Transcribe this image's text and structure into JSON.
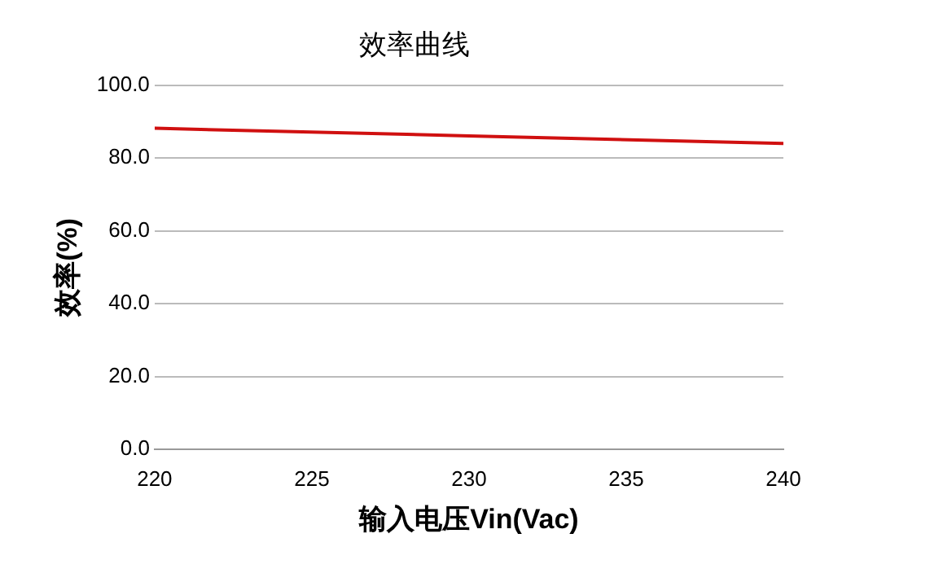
{
  "chart_data": {
    "type": "line",
    "title": "效率曲线",
    "xlabel": "输入电压Vin(Vac)",
    "ylabel": "效率(%)",
    "x": [
      220,
      230,
      240
    ],
    "series": [
      {
        "color": "#d01010",
        "values": [
          88.2,
          86.1,
          84.0
        ]
      }
    ],
    "xlim": [
      220,
      240
    ],
    "xticks": [
      220,
      225,
      230,
      235,
      240
    ],
    "ylim": [
      0,
      100
    ],
    "yticks": [
      {
        "value": 0,
        "label": "0.0"
      },
      {
        "value": 20,
        "label": "20.0"
      },
      {
        "value": 40,
        "label": "40.0"
      },
      {
        "value": 60,
        "label": "60.0"
      },
      {
        "value": 80,
        "label": "80.0"
      },
      {
        "value": 100,
        "label": "100.0"
      }
    ],
    "grid": "y",
    "legend": false,
    "marker": "none",
    "line_style": "solid"
  }
}
